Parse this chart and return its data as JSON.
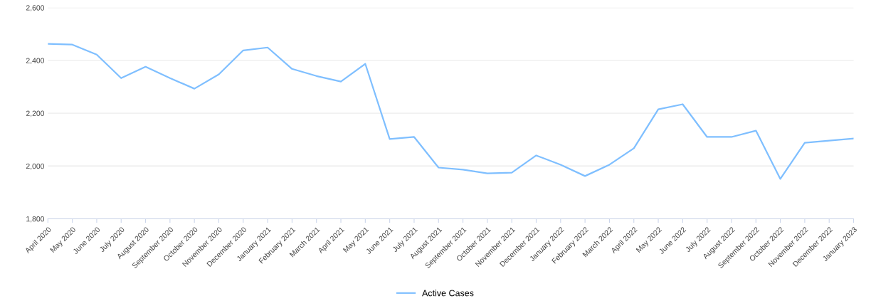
{
  "chart_data": {
    "type": "line",
    "categories": [
      "April 2020",
      "May 2020",
      "June 2020",
      "July 2020",
      "August 2020",
      "September 2020",
      "October 2020",
      "November 2020",
      "December 2020",
      "January 2021",
      "February 2021",
      "March 2021",
      "April 2021",
      "May 2021",
      "June 2021",
      "July 2021",
      "August 2021",
      "September 2021",
      "October 2021",
      "November 2021",
      "December 2021",
      "January 2022",
      "February 2022",
      "March 2022",
      "April 2022",
      "May 2022",
      "June 2022",
      "July 2022",
      "August 2022",
      "September 2022",
      "October 2022",
      "November 2022",
      "December 2022",
      "January 2023"
    ],
    "series": [
      {
        "name": "Active Cases",
        "color": "#7fbfff",
        "values": [
          2463,
          2460,
          2422,
          2333,
          2376,
          2333,
          2293,
          2347,
          2438,
          2449,
          2368,
          2341,
          2320,
          2387,
          2102,
          2110,
          1994,
          1986,
          1972,
          1975,
          2040,
          2005,
          1962,
          2005,
          2067,
          2215,
          2234,
          2110,
          2110,
          2134,
          1951,
          2088,
          2096,
          2104
        ]
      }
    ],
    "ylim": [
      1800,
      2600
    ],
    "yticks": [
      {
        "value": 1800,
        "label": "1,800"
      },
      {
        "value": 2000,
        "label": "2,000"
      },
      {
        "value": 2200,
        "label": "2,200"
      },
      {
        "value": 2400,
        "label": "2,400"
      },
      {
        "value": 2600,
        "label": "2,600"
      }
    ],
    "grid": "y",
    "legend": "bottom",
    "marker": "none",
    "line_style": "solid"
  }
}
